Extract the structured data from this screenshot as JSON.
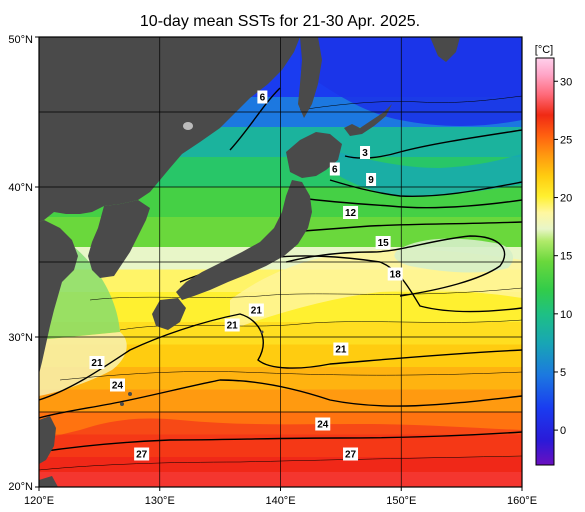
{
  "title": "10-day mean SSTs for 21-30 Apr. 2025.",
  "map": {
    "lon_range": [
      120,
      160
    ],
    "lat_range": [
      20,
      50
    ],
    "x_ticks": [
      {
        "value": 120,
        "label": "120°E"
      },
      {
        "value": 130,
        "label": "130°E"
      },
      {
        "value": 140,
        "label": "140°E"
      },
      {
        "value": 150,
        "label": "150°E"
      },
      {
        "value": 160,
        "label": "160°E"
      }
    ],
    "y_ticks": [
      {
        "value": 50,
        "label": "50°N"
      },
      {
        "value": 40,
        "label": "40°N"
      },
      {
        "value": 30,
        "label": "30°N"
      },
      {
        "value": 20,
        "label": "20°N"
      }
    ],
    "grid_lon": [
      130,
      140,
      150
    ],
    "grid_lat": [
      25,
      30,
      35,
      40,
      45
    ],
    "land_color": "#4a4a4a"
  },
  "colorbar": {
    "unit": "[°C]",
    "min": -3,
    "max": 32,
    "ticks": [
      {
        "value": 30,
        "label": "30"
      },
      {
        "value": 25,
        "label": "25"
      },
      {
        "value": 20,
        "label": "20"
      },
      {
        "value": 15,
        "label": "15"
      },
      {
        "value": 10,
        "label": "10"
      },
      {
        "value": 5,
        "label": "5"
      },
      {
        "value": 0,
        "label": "0"
      }
    ]
  },
  "sst_bands": [
    {
      "lat_top": 50.0,
      "lat_bottom": 46.0,
      "temp": 3
    },
    {
      "lat_top": 46.0,
      "lat_bottom": 44.0,
      "temp": 5
    },
    {
      "lat_top": 44.0,
      "lat_bottom": 42.0,
      "temp": 8
    },
    {
      "lat_top": 42.0,
      "lat_bottom": 40.0,
      "temp": 10
    },
    {
      "lat_top": 40.0,
      "lat_bottom": 38.0,
      "temp": 12
    },
    {
      "lat_top": 38.0,
      "lat_bottom": 36.0,
      "temp": 14
    },
    {
      "lat_top": 36.0,
      "lat_bottom": 34.5,
      "temp": 17
    },
    {
      "lat_top": 34.5,
      "lat_bottom": 33.0,
      "temp": 19
    },
    {
      "lat_top": 33.0,
      "lat_bottom": 31.0,
      "temp": 20
    },
    {
      "lat_top": 31.0,
      "lat_bottom": 29.5,
      "temp": 21
    },
    {
      "lat_top": 29.5,
      "lat_bottom": 28.0,
      "temp": 22
    },
    {
      "lat_top": 28.0,
      "lat_bottom": 26.5,
      "temp": 23
    },
    {
      "lat_top": 26.5,
      "lat_bottom": 25.0,
      "temp": 24
    },
    {
      "lat_top": 25.0,
      "lat_bottom": 23.5,
      "temp": 25
    },
    {
      "lat_top": 23.5,
      "lat_bottom": 22.0,
      "temp": 26
    },
    {
      "lat_top": 22.0,
      "lat_bottom": 21.0,
      "temp": 27
    },
    {
      "lat_top": 21.0,
      "lat_bottom": 20.0,
      "temp": 28
    }
  ],
  "contour_labels": [
    {
      "text": "6",
      "lon": 138.5,
      "lat": 46.0
    },
    {
      "text": "3",
      "lon": 147.0,
      "lat": 42.3
    },
    {
      "text": "6",
      "lon": 144.5,
      "lat": 41.2
    },
    {
      "text": "9",
      "lon": 147.5,
      "lat": 40.5
    },
    {
      "text": "12",
      "lon": 145.8,
      "lat": 38.3
    },
    {
      "text": "15",
      "lon": 148.5,
      "lat": 36.3
    },
    {
      "text": "18",
      "lon": 149.5,
      "lat": 34.2
    },
    {
      "text": "21",
      "lon": 138.0,
      "lat": 31.8
    },
    {
      "text": "21",
      "lon": 136.0,
      "lat": 30.8
    },
    {
      "text": "21",
      "lon": 145.0,
      "lat": 29.2
    },
    {
      "text": "21",
      "lon": 124.8,
      "lat": 28.3
    },
    {
      "text": "24",
      "lon": 126.5,
      "lat": 26.8
    },
    {
      "text": "24",
      "lon": 143.5,
      "lat": 24.2
    },
    {
      "text": "27",
      "lon": 128.5,
      "lat": 22.2
    },
    {
      "text": "27",
      "lon": 145.8,
      "lat": 22.2
    }
  ]
}
